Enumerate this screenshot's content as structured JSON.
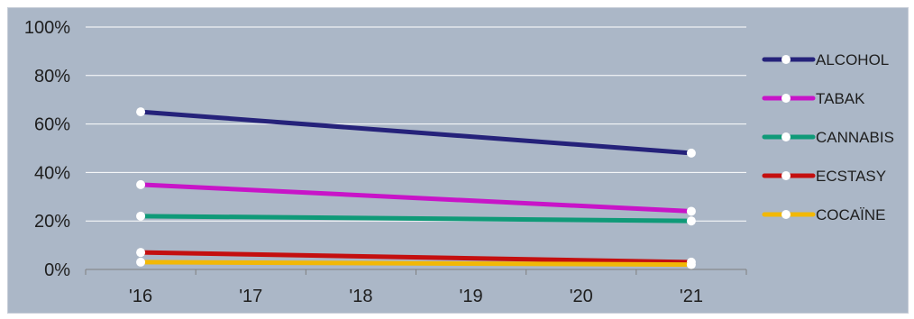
{
  "chart_data": {
    "type": "line",
    "x": [
      "'16",
      "'17",
      "'18",
      "'19",
      "'20",
      "'21"
    ],
    "categories": [
      "'16",
      "'17",
      "'18",
      "'19",
      "'20",
      "'21"
    ],
    "series": [
      {
        "name": "ALCOHOL",
        "color": "#25227a",
        "x": [
          "'16",
          "'21"
        ],
        "values": [
          65,
          48
        ]
      },
      {
        "name": "TABAK",
        "color": "#c814c8",
        "x": [
          "'16",
          "'21"
        ],
        "values": [
          35,
          24
        ]
      },
      {
        "name": "CANNABIS",
        "color": "#0f9a78",
        "x": [
          "'16",
          "'21"
        ],
        "values": [
          22,
          20
        ]
      },
      {
        "name": "ECSTASY",
        "color": "#c40f0f",
        "x": [
          "'16",
          "'21"
        ],
        "values": [
          7,
          3
        ]
      },
      {
        "name": "COCAÏNE",
        "color": "#f2b806",
        "x": [
          "'16",
          "'21"
        ],
        "values": [
          3,
          2
        ]
      }
    ],
    "y_ticks": [
      "0%",
      "20%",
      "40%",
      "60%",
      "80%",
      "100%"
    ],
    "ylim": [
      0,
      100
    ],
    "title": "",
    "xlabel": "",
    "ylabel": "",
    "grid": true,
    "legend": "right"
  }
}
